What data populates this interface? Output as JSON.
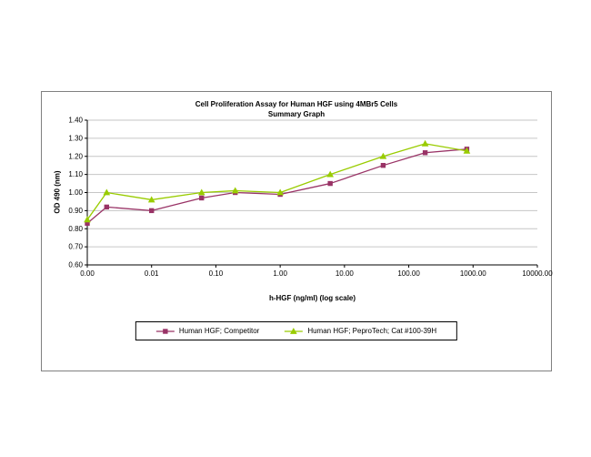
{
  "chart": {
    "title_line1": "Cell Proliferation Assay for Human HGF using 4MBr5 Cells",
    "title_line2": "Summary Graph",
    "x_axis_label": "h-HGF (ng/ml) (log scale)",
    "y_axis_label": "OD 490 (nm)"
  },
  "chart_data": {
    "type": "line",
    "title": "Cell Proliferation Assay for Human HGF using 4MBr5 Cells — Summary Graph",
    "xlabel": "h-HGF (ng/ml) (log scale)",
    "ylabel": "OD 490 (nm)",
    "x_scale": "log",
    "xlim": [
      0.001,
      10000
    ],
    "ylim": [
      0.6,
      1.4
    ],
    "x_ticks": [
      0.001,
      0.01,
      0.1,
      1,
      10,
      100,
      1000,
      10000
    ],
    "x_tick_labels": [
      "0.00",
      "0.01",
      "0.10",
      "1.00",
      "10.00",
      "100.00",
      "1000.00",
      "10000.00"
    ],
    "y_ticks": [
      0.6,
      0.7,
      0.8,
      0.9,
      1.0,
      1.1,
      1.2,
      1.3,
      1.4
    ],
    "y_tick_labels": [
      "0.60",
      "0.70",
      "0.80",
      "0.90",
      "1.00",
      "1.10",
      "1.20",
      "1.30",
      "1.40"
    ],
    "grid": "horizontal",
    "legend_position": "bottom",
    "x": [
      0.001,
      0.002,
      0.01,
      0.06,
      0.2,
      1,
      6,
      40,
      180,
      800
    ],
    "series": [
      {
        "name": "Human HGF; Competitor",
        "color": "#993366",
        "marker": "square",
        "values": [
          0.83,
          0.92,
          0.9,
          0.97,
          1.0,
          0.99,
          1.05,
          1.15,
          1.22,
          1.24
        ]
      },
      {
        "name": "Human HGF; PeproTech; Cat #100-39H",
        "color": "#99CC00",
        "marker": "triangle",
        "values": [
          0.85,
          1.0,
          0.96,
          1.0,
          1.01,
          1.0,
          1.1,
          1.2,
          1.27,
          1.23
        ]
      }
    ],
    "colors": {
      "gridline": "#c6c6c6",
      "axis": "#000000",
      "chart_border": "#808080"
    }
  }
}
